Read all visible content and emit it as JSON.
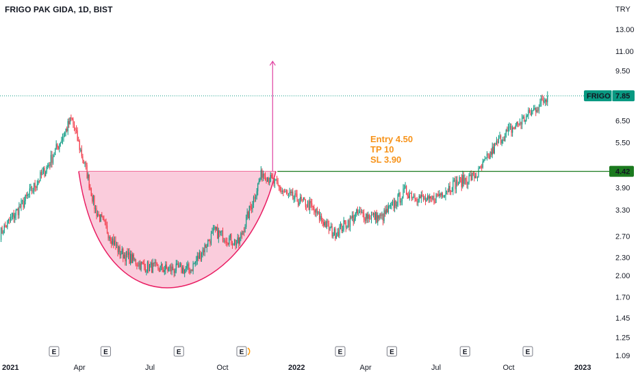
{
  "header": {
    "title": "FRIGO PAK GIDA, 1D, BIST"
  },
  "axis": {
    "currency": "TRY"
  },
  "price_tag": {
    "symbol": "FRIGO",
    "value": "7.85",
    "color": "#089981"
  },
  "level_tag": {
    "value": "4.42",
    "color": "#1b7a1f"
  },
  "annotation": {
    "lines": [
      "Entry 4.50",
      "TP 10",
      "SL 3.90"
    ],
    "color": "#f7931a"
  },
  "earnings_marker": "E",
  "colors": {
    "up": "#089981",
    "down": "#f23645",
    "cup_fill": "#f8bbd0",
    "cup_line": "#e91e63",
    "arrow": "#e040a0",
    "level_line": "#1b7a1f"
  },
  "chart_data": {
    "type": "candlestick",
    "title": "FRIGO PAK GIDA, 1D, BIST",
    "scale": "log",
    "y_ticks": [
      "13.00",
      "11.00",
      "9.50",
      "6.50",
      "5.50",
      "4.42",
      "3.90",
      "3.30",
      "2.70",
      "2.30",
      "2.00",
      "1.70",
      "1.45",
      "1.25",
      "1.09"
    ],
    "x_ticks": [
      "2021",
      "Apr",
      "Jul",
      "Oct",
      "2022",
      "Apr",
      "Jul",
      "Oct",
      "2023"
    ],
    "last_price": 7.85,
    "breakout_level": 4.42,
    "earnings_dates": [
      "2021-03",
      "2021-05",
      "2021-08",
      "2021-11",
      "2022-03",
      "2022-05",
      "2022-08",
      "2022-11"
    ],
    "approx_close_path": [
      {
        "date": "2021-01",
        "close": 2.75
      },
      {
        "date": "2021-02",
        "close": 3.5
      },
      {
        "date": "2021-03",
        "close": 4.6
      },
      {
        "date": "2021-04",
        "close": 6.6
      },
      {
        "date": "2021-04-20",
        "close": 4.4
      },
      {
        "date": "2021-05",
        "close": 3.3
      },
      {
        "date": "2021-06",
        "close": 2.4
      },
      {
        "date": "2021-07",
        "close": 2.15
      },
      {
        "date": "2021-08",
        "close": 2.1
      },
      {
        "date": "2021-09",
        "close": 2.1
      },
      {
        "date": "2021-10",
        "close": 2.8
      },
      {
        "date": "2021-11",
        "close": 2.55
      },
      {
        "date": "2021-12",
        "close": 4.4
      },
      {
        "date": "2022-01",
        "close": 3.7
      },
      {
        "date": "2022-02",
        "close": 3.4
      },
      {
        "date": "2022-03",
        "close": 2.75
      },
      {
        "date": "2022-04",
        "close": 3.2
      },
      {
        "date": "2022-05",
        "close": 3.1
      },
      {
        "date": "2022-06",
        "close": 3.8
      },
      {
        "date": "2022-07",
        "close": 3.5
      },
      {
        "date": "2022-08",
        "close": 4.0
      },
      {
        "date": "2022-09",
        "close": 4.3
      },
      {
        "date": "2022-10",
        "close": 5.7
      },
      {
        "date": "2022-11",
        "close": 6.6
      },
      {
        "date": "2022-12",
        "close": 7.85
      }
    ]
  }
}
